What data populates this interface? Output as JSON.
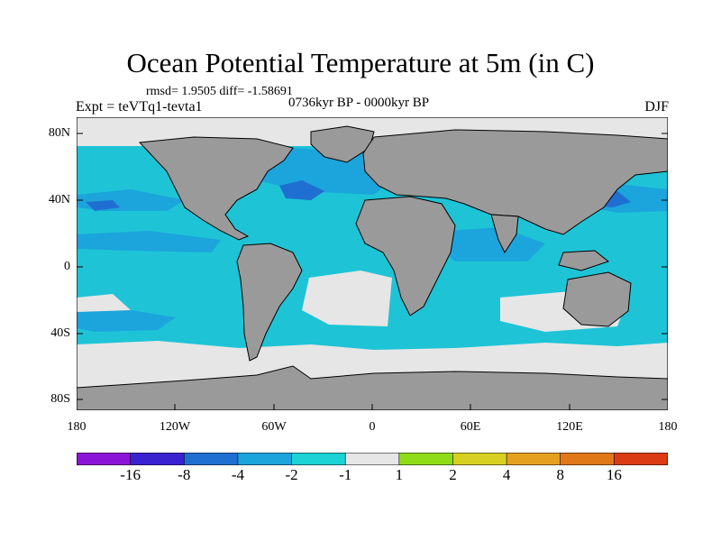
{
  "title": "Ocean Potential Temperature at 5m (in C)",
  "stats": "rmsd= 1.9505  diff= -1.58691",
  "experiment": "Expt = teVTq1-tevta1",
  "period": "0736kyr BP - 0000kyr BP",
  "season": "DJF",
  "axes": {
    "lat_labels": [
      "80N",
      "40N",
      "0",
      "40S",
      "80S"
    ],
    "lon_labels": [
      "180",
      "120W",
      "60W",
      "0",
      "60E",
      "120E",
      "180"
    ]
  },
  "colorbar": {
    "colors": [
      "#8c14d8",
      "#3b22d0",
      "#1f6fd2",
      "#1ca4dc",
      "#1dd2d4",
      "#e6e6e6",
      "#8edc18",
      "#d8d020",
      "#e6a020",
      "#e07818",
      "#dc3c14"
    ],
    "labels": [
      "-16",
      "-8",
      "-4",
      "-2",
      "-1",
      "1",
      "2",
      "4",
      "8",
      "16"
    ]
  },
  "colors": {
    "land": "#9a9a9a",
    "ocean_base": "#1ec4d6",
    "strong_negative": "#1ca4dc",
    "very_strong_negative": "#1f6fd2",
    "neutral": "#e6e6e6"
  }
}
